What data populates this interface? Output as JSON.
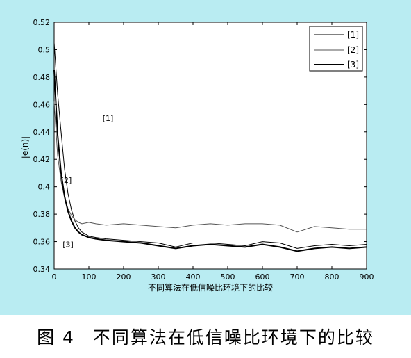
{
  "chart_data": {
    "type": "line",
    "xlabel": "不同算法在低信噪比环境下的比较",
    "ylabel": "|e(n)|",
    "xlim": [
      0,
      900
    ],
    "ylim": [
      0.34,
      0.52
    ],
    "xticks": [
      0,
      100,
      200,
      300,
      400,
      500,
      600,
      700,
      800,
      900
    ],
    "yticks": [
      0.34,
      0.36,
      0.38,
      0.4,
      0.42,
      0.44,
      0.46,
      0.48,
      0.5,
      0.52
    ],
    "legend_position": "top-right",
    "grid": false,
    "series": [
      {
        "name": "[1]",
        "color": "#000000",
        "x": [
          0,
          10,
          20,
          30,
          40,
          50,
          60,
          70,
          80,
          100,
          120,
          150,
          200,
          250,
          300,
          350,
          400,
          450,
          500,
          550,
          600,
          650,
          700,
          750,
          800,
          850,
          900
        ],
        "y": [
          0.505,
          0.468,
          0.44,
          0.413,
          0.395,
          0.383,
          0.375,
          0.37,
          0.367,
          0.364,
          0.363,
          0.362,
          0.361,
          0.36,
          0.359,
          0.356,
          0.359,
          0.359,
          0.358,
          0.357,
          0.36,
          0.359,
          0.355,
          0.357,
          0.358,
          0.357,
          0.358
        ]
      },
      {
        "name": "[2]",
        "color": "#555555",
        "x": [
          0,
          10,
          20,
          30,
          40,
          50,
          60,
          70,
          80,
          100,
          120,
          150,
          200,
          250,
          300,
          350,
          400,
          450,
          500,
          550,
          600,
          650,
          700,
          750,
          800,
          850,
          900
        ],
        "y": [
          0.462,
          0.423,
          0.404,
          0.392,
          0.384,
          0.379,
          0.376,
          0.374,
          0.373,
          0.374,
          0.373,
          0.372,
          0.373,
          0.372,
          0.371,
          0.37,
          0.372,
          0.373,
          0.372,
          0.373,
          0.373,
          0.372,
          0.367,
          0.371,
          0.37,
          0.369,
          0.369
        ]
      },
      {
        "name": "[3]",
        "color": "#000000",
        "x": [
          0,
          10,
          20,
          30,
          40,
          50,
          60,
          70,
          80,
          100,
          120,
          150,
          200,
          250,
          300,
          350,
          400,
          450,
          500,
          550,
          600,
          650,
          700,
          750,
          800,
          850,
          900
        ],
        "y": [
          0.485,
          0.438,
          0.41,
          0.393,
          0.382,
          0.375,
          0.37,
          0.367,
          0.365,
          0.363,
          0.362,
          0.361,
          0.36,
          0.359,
          0.357,
          0.355,
          0.357,
          0.358,
          0.357,
          0.356,
          0.358,
          0.356,
          0.353,
          0.355,
          0.356,
          0.355,
          0.356
        ]
      }
    ],
    "annotations": [
      {
        "text": "[1]",
        "x": 155,
        "y": 0.448
      },
      {
        "text": "[2]",
        "x": 35,
        "y": 0.403
      },
      {
        "text": "[3]",
        "x": 40,
        "y": 0.356
      }
    ]
  },
  "caption": {
    "figure_label": "图 4",
    "text": "不同算法在低信噪比环境下的比较"
  }
}
